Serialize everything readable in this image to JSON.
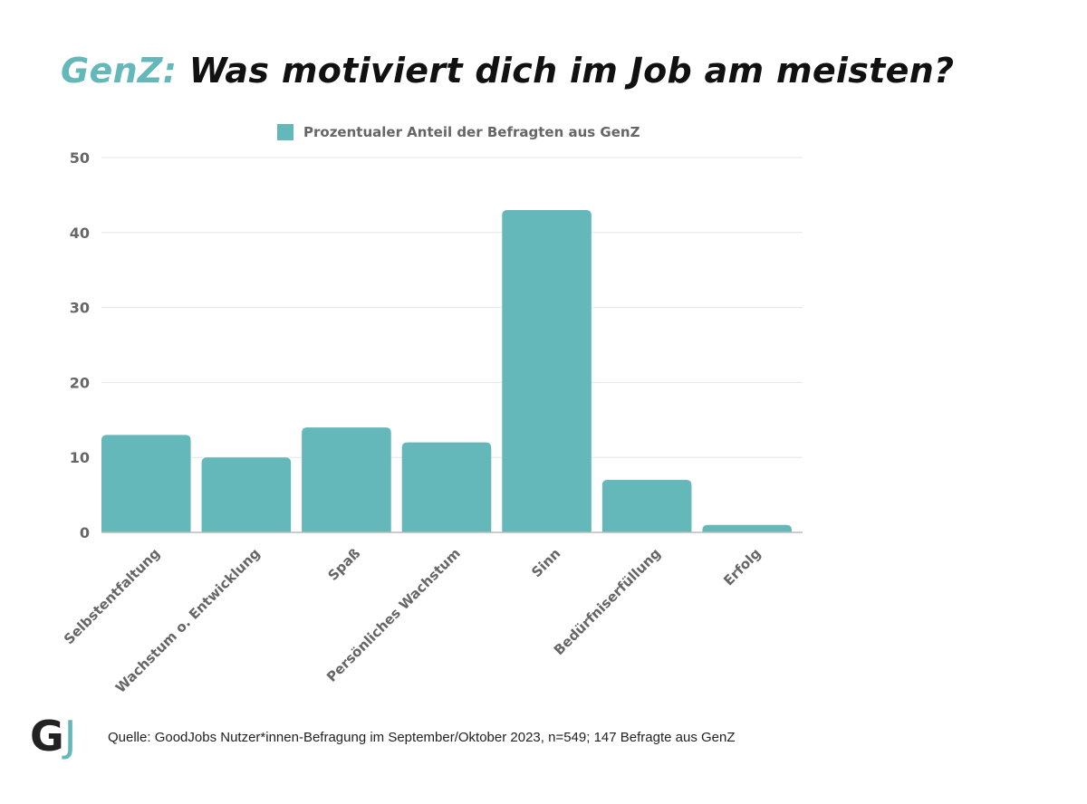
{
  "title": {
    "accent": "GenZ:",
    "main": "Was motiviert dich im Job am meisten?"
  },
  "colors": {
    "bar": "#64b8b9",
    "accent": "#64b8b9",
    "axis_text": "#666666",
    "grid": "#e6e6e6"
  },
  "chart_data": {
    "type": "bar",
    "title": "GenZ: Was motiviert dich im Job am meisten?",
    "xlabel": "",
    "ylabel": "",
    "categories": [
      "Selbstentfaltung",
      "Wachstum o. Entwicklung",
      "Spaß",
      "Persönliches Wachstum",
      "Sinn",
      "Bedürfniserfüllung",
      "Erfolg"
    ],
    "series": [
      {
        "name": "Prozentualer Anteil der Befragten aus GenZ",
        "values": [
          13,
          10,
          14,
          12,
          43,
          7,
          1
        ]
      }
    ],
    "ylim": [
      0,
      50
    ],
    "yticks": [
      0,
      10,
      20,
      30,
      40,
      50
    ],
    "grid": true,
    "legend_position": "top-center"
  },
  "footer": {
    "logo_g": "G",
    "logo_j": "J",
    "source": "Quelle: GoodJobs Nutzer*innen-Befragung im September/Oktober 2023, n=549; 147 Befragte aus GenZ"
  }
}
